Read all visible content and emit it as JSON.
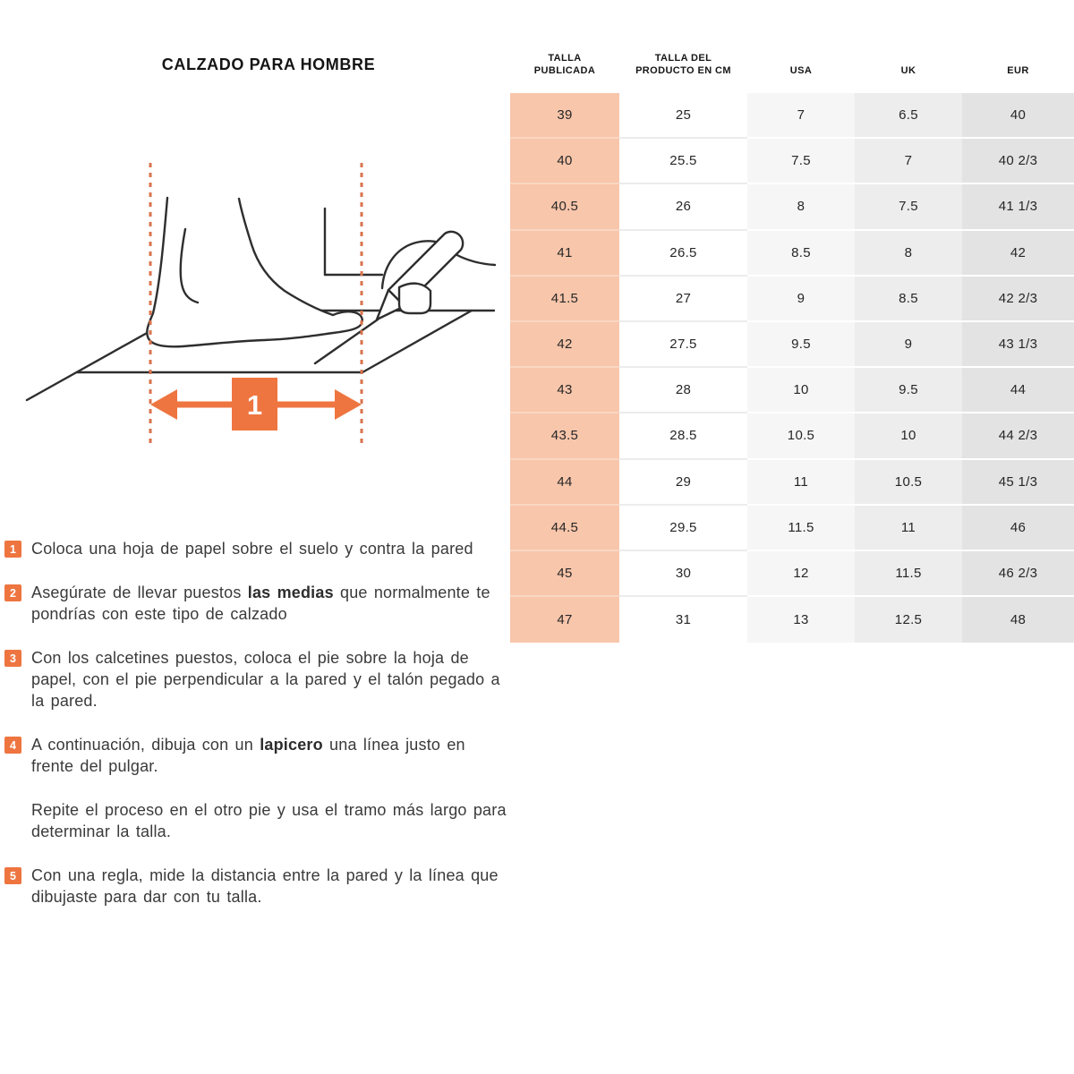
{
  "page": {
    "title": "CALZADO PARA HOMBRE"
  },
  "colors": {
    "accent": "#ee7540",
    "dashed_line": "#d9734e",
    "peach_column": "#f8c6ab"
  },
  "illustration": {
    "arrow_label": "1"
  },
  "instructions": [
    {
      "number": "1",
      "segments": [
        {
          "text": "Coloca una hoja de papel sobre el suelo y contra la pared",
          "bold": false
        }
      ]
    },
    {
      "number": "2",
      "segments": [
        {
          "text": "Asegúrate de llevar puestos ",
          "bold": false
        },
        {
          "text": "las medias",
          "bold": true
        },
        {
          "text": " que normalmente te pondrías con este tipo de calzado",
          "bold": false
        }
      ]
    },
    {
      "number": "3",
      "segments": [
        {
          "text": "Con los calcetines puestos, coloca el pie sobre la hoja de papel, con el pie perpendicular a la pared y el talón pegado a la pared.",
          "bold": false
        }
      ]
    },
    {
      "number": "4",
      "segments": [
        {
          "text": "A continuación, dibuja con un ",
          "bold": false
        },
        {
          "text": "lapicero",
          "bold": true
        },
        {
          "text": " una línea justo en frente del pulgar.",
          "bold": false
        }
      ]
    },
    {
      "number": null,
      "segments": [
        {
          "text": "Repite el proceso en el otro pie y usa el tramo más largo para determinar la talla.",
          "bold": false
        }
      ]
    },
    {
      "number": "5",
      "segments": [
        {
          "text": "Con una regla, mide la distancia entre la pared y la línea que dibujaste para dar con tu talla.",
          "bold": false
        }
      ]
    }
  ],
  "table": {
    "headers": [
      "TALLA\nPUBLICADA",
      "TALLA DEL\nPRODUCTO EN CM",
      "USA",
      "UK",
      "EUR"
    ],
    "rows": [
      [
        "39",
        "25",
        "7",
        "6.5",
        "40"
      ],
      [
        "40",
        "25.5",
        "7.5",
        "7",
        "40 2/3"
      ],
      [
        "40.5",
        "26",
        "8",
        "7.5",
        "41 1/3"
      ],
      [
        "41",
        "26.5",
        "8.5",
        "8",
        "42"
      ],
      [
        "41.5",
        "27",
        "9",
        "8.5",
        "42 2/3"
      ],
      [
        "42",
        "27.5",
        "9.5",
        "9",
        "43 1/3"
      ],
      [
        "43",
        "28",
        "10",
        "9.5",
        "44"
      ],
      [
        "43.5",
        "28.5",
        "10.5",
        "10",
        "44 2/3"
      ],
      [
        "44",
        "29",
        "11",
        "10.5",
        "45 1/3"
      ],
      [
        "44.5",
        "29.5",
        "11.5",
        "11",
        "46"
      ],
      [
        "45",
        "30",
        "12",
        "11.5",
        "46 2/3"
      ],
      [
        "47",
        "31",
        "13",
        "12.5",
        "48"
      ]
    ],
    "style": {
      "column_colors": [
        "#f8c6ab",
        "#ffffff",
        "#f6f6f6",
        "#ededed",
        "#e3e3e3"
      ],
      "separator_colors": [
        "#fad7c2",
        "#ececec",
        "#ffffff",
        "#ffffff",
        "#ffffff"
      ]
    }
  }
}
